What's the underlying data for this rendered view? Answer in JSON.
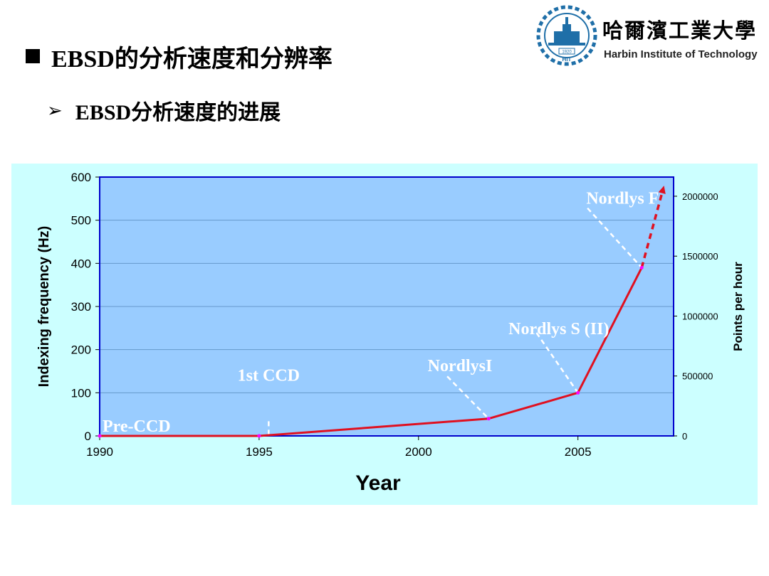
{
  "slide": {
    "title": "EBSD的分析速度和分辨率",
    "subtitle": "EBSD分析速度的进展",
    "subtitle_marker": "➢"
  },
  "logo": {
    "chinese_name": "哈爾濱工業大學",
    "english_name": "Harbin Institute of Technology",
    "badge_year": "1920",
    "badge_letters": "HIT",
    "color": "#1f6fa8"
  },
  "chart_data": {
    "type": "line",
    "xlabel": "Year",
    "ylabel": "Indexing frequency (Hz)",
    "ylabel_right": "Points per hour",
    "xlim": [
      1990,
      2008
    ],
    "ylim": [
      0,
      600
    ],
    "ylim_right": [
      0,
      2160000
    ],
    "x_ticks": [
      "1990",
      "1995",
      "2000",
      "2005"
    ],
    "y_ticks": [
      "0",
      "100",
      "200",
      "300",
      "400",
      "500",
      "600"
    ],
    "y_ticks_right": [
      "0",
      "500000",
      "1000000",
      "1500000",
      "2000000"
    ],
    "grid": true,
    "series": [
      {
        "solid": {
          "x": [
            1990,
            1995,
            2002.2,
            2005,
            2007
          ],
          "y": [
            0,
            0,
            40,
            100,
            390
          ]
        },
        "projected": {
          "x": [
            2007,
            2007.7
          ],
          "y": [
            390,
            580
          ]
        }
      }
    ],
    "annotations": [
      {
        "text": "Pre-CCD",
        "x": 1990,
        "y": 0
      },
      {
        "text": "1st CCD",
        "x": 1995.3,
        "y": 0
      },
      {
        "text": "NordlysI",
        "x": 2002.2,
        "y": 40
      },
      {
        "text": "Nordlys S (II)",
        "x": 2005,
        "y": 100
      },
      {
        "text": "Nordlys F",
        "x": 2007,
        "y": 390
      }
    ],
    "colors": {
      "panel_bg": "#ccffff",
      "plot_bg": "#99ccff",
      "plot_border": "#0000cc",
      "line": "#e01020",
      "marker": "#ff00ff",
      "annotation": "#ffffff"
    }
  }
}
